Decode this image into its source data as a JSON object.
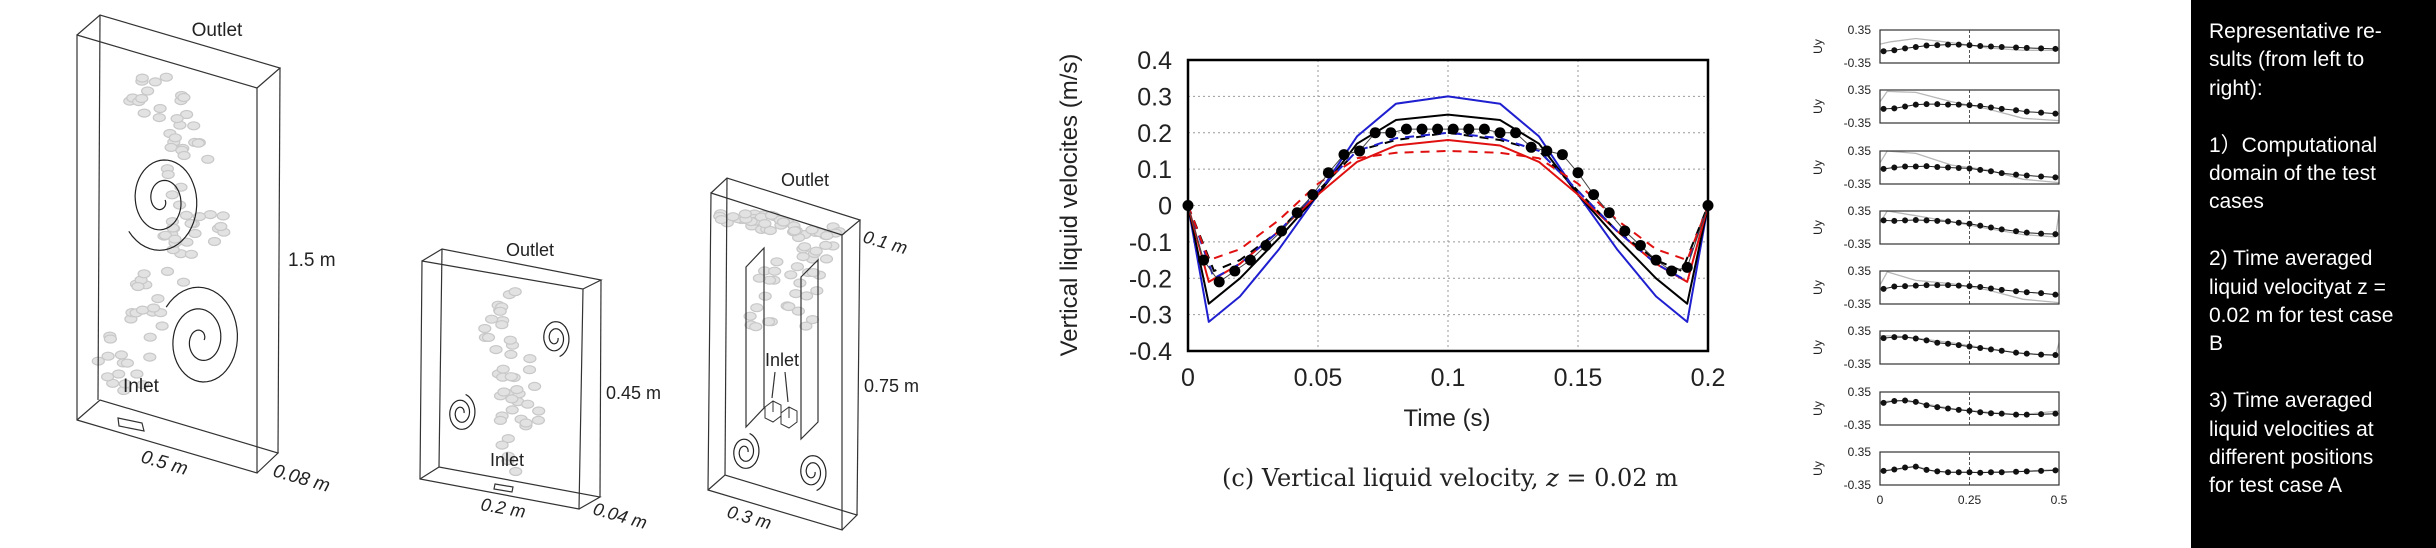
{
  "domains": [
    {
      "outlet": "Outlet",
      "inlet": "Inlet",
      "height": "1.5 m",
      "width": "0.5 m",
      "depth": "0.08 m"
    },
    {
      "outlet": "Outlet",
      "inlet": "Inlet",
      "height": "0.45 m",
      "width": "0.2 m",
      "depth": "0.04 m"
    },
    {
      "outlet": "Outlet",
      "inlet": "Inlet",
      "height": "0.75 m",
      "width": "0.3 m",
      "depth": "0.1 m"
    }
  ],
  "caption": {
    "prefix": "(c) Vertical liquid velocity, ",
    "var": "z",
    "suffix": " = 0.02 m"
  },
  "chart_data": [
    {
      "type": "line",
      "title": "",
      "xlabel": "Time (s)",
      "ylabel": "Vertical liquid velocites (m/s)",
      "xlim": [
        0,
        0.2
      ],
      "ylim": [
        -0.4,
        0.4
      ],
      "xticks": [
        "0",
        "0.05",
        "0.1",
        "0.15",
        "0.2"
      ],
      "xtick_values": [
        0,
        0.05,
        0.1,
        0.15,
        0.2
      ],
      "yticks": [
        "0.4",
        "0.3",
        "0.2",
        "0.1",
        "0",
        "-0.1",
        "-0.2",
        "-0.3",
        "-0.4"
      ],
      "ytick_values": [
        0.4,
        0.3,
        0.2,
        0.1,
        0,
        -0.1,
        -0.2,
        -0.3,
        -0.4
      ],
      "grid": true,
      "series": [
        {
          "name": "blue solid",
          "color": "#1f1fd0",
          "dash": false,
          "x": [
            0,
            0.008,
            0.02,
            0.035,
            0.05,
            0.065,
            0.08,
            0.1,
            0.12,
            0.135,
            0.15,
            0.165,
            0.18,
            0.192,
            0.2
          ],
          "y": [
            0,
            -0.32,
            -0.25,
            -0.12,
            0.03,
            0.19,
            0.28,
            0.3,
            0.28,
            0.19,
            0.03,
            -0.12,
            -0.25,
            -0.32,
            0
          ]
        },
        {
          "name": "black solid",
          "color": "#000000",
          "dash": false,
          "x": [
            0,
            0.008,
            0.02,
            0.035,
            0.05,
            0.065,
            0.08,
            0.1,
            0.12,
            0.135,
            0.15,
            0.165,
            0.18,
            0.192,
            0.2
          ],
          "y": [
            0,
            -0.27,
            -0.2,
            -0.09,
            0.03,
            0.17,
            0.235,
            0.25,
            0.235,
            0.17,
            0.03,
            -0.09,
            -0.2,
            -0.27,
            0
          ]
        },
        {
          "name": "red solid",
          "color": "#e01010",
          "dash": false,
          "x": [
            0,
            0.008,
            0.02,
            0.035,
            0.05,
            0.065,
            0.08,
            0.1,
            0.12,
            0.135,
            0.15,
            0.165,
            0.18,
            0.192,
            0.2
          ],
          "y": [
            0,
            -0.21,
            -0.16,
            -0.07,
            0.03,
            0.12,
            0.165,
            0.18,
            0.165,
            0.12,
            0.03,
            -0.07,
            -0.16,
            -0.21,
            0
          ]
        },
        {
          "name": "black dashed",
          "color": "#000000",
          "dash": true,
          "x": [
            0,
            0.01,
            0.02,
            0.035,
            0.05,
            0.065,
            0.08,
            0.1,
            0.12,
            0.135,
            0.15,
            0.165,
            0.18,
            0.19,
            0.2
          ],
          "y": [
            0,
            -0.18,
            -0.15,
            -0.07,
            0.04,
            0.15,
            0.18,
            0.2,
            0.18,
            0.15,
            0.04,
            -0.07,
            -0.15,
            -0.18,
            0
          ]
        },
        {
          "name": "blue dashed",
          "color": "#1f1fd0",
          "dash": true,
          "x": [
            0,
            0.01,
            0.02,
            0.035,
            0.05,
            0.065,
            0.08,
            0.1,
            0.12,
            0.135,
            0.15,
            0.165,
            0.18,
            0.19,
            0.2
          ],
          "y": [
            0,
            -0.2,
            -0.16,
            -0.07,
            0.04,
            0.15,
            0.185,
            0.2,
            0.185,
            0.15,
            0.04,
            -0.07,
            -0.16,
            -0.2,
            0
          ]
        },
        {
          "name": "red dashed",
          "color": "#e01010",
          "dash": true,
          "x": [
            0,
            0.008,
            0.02,
            0.035,
            0.05,
            0.065,
            0.08,
            0.1,
            0.12,
            0.135,
            0.15,
            0.165,
            0.18,
            0.192,
            0.2
          ],
          "y": [
            0,
            -0.15,
            -0.12,
            -0.04,
            0.06,
            0.13,
            0.145,
            0.15,
            0.145,
            0.13,
            0.06,
            -0.04,
            -0.12,
            -0.15,
            0
          ]
        },
        {
          "name": "experiment",
          "color": "#000000",
          "marker": "circle",
          "x": [
            0,
            0.006,
            0.012,
            0.018,
            0.024,
            0.03,
            0.036,
            0.042,
            0.048,
            0.054,
            0.06,
            0.066,
            0.072,
            0.078,
            0.084,
            0.09,
            0.096,
            0.102,
            0.108,
            0.114,
            0.12,
            0.126,
            0.132,
            0.138,
            0.144,
            0.15,
            0.156,
            0.162,
            0.168,
            0.174,
            0.18,
            0.186,
            0.192,
            0.2
          ],
          "y": [
            0,
            -0.15,
            -0.21,
            -0.18,
            -0.15,
            -0.11,
            -0.07,
            -0.02,
            0.03,
            0.09,
            0.14,
            0.15,
            0.2,
            0.2,
            0.21,
            0.21,
            0.21,
            0.21,
            0.21,
            0.21,
            0.2,
            0.2,
            0.16,
            0.15,
            0.14,
            0.09,
            0.03,
            -0.02,
            -0.07,
            -0.11,
            -0.15,
            -0.18,
            -0.17,
            0
          ]
        }
      ]
    },
    {
      "type": "line",
      "ylabel": "Uy",
      "xlim": [
        0,
        0.5
      ],
      "ylim": [
        -0.35,
        0.35
      ],
      "ytick_top": "0.35",
      "ytick_bottom": "-0.35",
      "xticks": [
        "0",
        "0.25",
        "0.5"
      ],
      "xtick_values": [
        0,
        0.25,
        0.5
      ],
      "reference_x": 0.25,
      "dot_x": [
        0.01,
        0.04,
        0.07,
        0.1,
        0.13,
        0.16,
        0.19,
        0.22,
        0.25,
        0.28,
        0.31,
        0.34,
        0.38,
        0.41,
        0.45,
        0.49
      ],
      "panels": [
        {
          "dots": [
            -0.1,
            -0.08,
            -0.04,
            -0.01,
            0.02,
            0.03,
            0.04,
            0.04,
            0.03,
            0.01,
            0,
            -0.01,
            -0.02,
            -0.03,
            -0.04,
            -0.05
          ],
          "model_x": [
            0,
            0.03,
            0.1,
            0.2,
            0.3,
            0.4,
            0.5
          ],
          "model_y": [
            0.05,
            0.1,
            0.17,
            0.08,
            -0.03,
            -0.08,
            -0.08
          ]
        },
        {
          "dots": [
            -0.05,
            -0.04,
            0.0,
            0.04,
            0.05,
            0.05,
            0.04,
            0.04,
            0.03,
            0.01,
            -0.02,
            -0.05,
            -0.08,
            -0.11,
            -0.13,
            -0.15
          ],
          "model_x": [
            0,
            0.02,
            0.1,
            0.2,
            0.3,
            0.4,
            0.5
          ],
          "model_y": [
            0.1,
            0.32,
            0.3,
            0.1,
            -0.05,
            -0.25,
            -0.3
          ]
        },
        {
          "dots": [
            -0.03,
            0,
            0.02,
            0.02,
            0.03,
            0.01,
            0,
            -0.01,
            -0.02,
            -0.05,
            -0.08,
            -0.12,
            -0.15,
            -0.17,
            -0.19,
            -0.21
          ],
          "model_x": [
            0,
            0.02,
            0.1,
            0.2,
            0.3,
            0.4,
            0.5
          ],
          "model_y": [
            0.1,
            0.35,
            0.3,
            0.05,
            -0.05,
            -0.25,
            -0.32
          ]
        },
        {
          "dots": [
            0.15,
            0.14,
            0.15,
            0.16,
            0.15,
            0.14,
            0.13,
            0.1,
            0.08,
            0.04,
            0.0,
            -0.04,
            -0.08,
            -0.11,
            -0.13,
            -0.14
          ],
          "model_x": [
            0,
            0.02,
            0.1,
            0.2,
            0.3,
            0.4,
            0.49,
            0.5
          ],
          "model_y": [
            0.1,
            0.35,
            0.25,
            0.12,
            -0.02,
            -0.15,
            -0.2,
            0.3
          ]
        },
        {
          "dots": [
            -0.03,
            0.02,
            0.03,
            0.04,
            0.05,
            0.05,
            0.05,
            0.04,
            0.03,
            0.01,
            -0.02,
            -0.05,
            -0.08,
            -0.1,
            -0.12,
            -0.15
          ],
          "model_x": [
            0,
            0.02,
            0.1,
            0.2,
            0.3,
            0.4,
            0.5
          ],
          "model_y": [
            0.05,
            0.33,
            0.15,
            0.08,
            -0.05,
            -0.25,
            -0.32
          ]
        },
        {
          "dots": [
            0.2,
            0.22,
            0.22,
            0.19,
            0.15,
            0.1,
            0.08,
            0.05,
            0.02,
            -0.01,
            -0.04,
            -0.07,
            -0.11,
            -0.13,
            -0.15,
            -0.16
          ],
          "model_x": [
            0,
            0.05,
            0.1,
            0.2,
            0.3,
            0.4,
            0.49,
            0.5
          ],
          "model_y": [
            0.25,
            0.24,
            0.2,
            0.1,
            -0.02,
            -0.13,
            -0.17,
            0.1
          ]
        },
        {
          "dots": [
            0.12,
            0.16,
            0.17,
            0.14,
            0.07,
            0.03,
            0.0,
            -0.03,
            -0.05,
            -0.08,
            -0.1,
            -0.11,
            -0.13,
            -0.13,
            -0.12,
            -0.11
          ],
          "model_x": [
            0,
            0.05,
            0.1,
            0.2,
            0.3,
            0.4,
            0.5
          ],
          "model_y": [
            0.14,
            0.17,
            0.13,
            0.0,
            -0.08,
            -0.13,
            -0.05
          ]
        },
        {
          "dots": [
            -0.05,
            -0.02,
            0.02,
            0.04,
            -0.03,
            -0.06,
            -0.08,
            -0.08,
            -0.08,
            -0.09,
            -0.08,
            -0.08,
            -0.07,
            -0.06,
            -0.05,
            -0.04
          ],
          "model_x": [
            0,
            0.05,
            0.1,
            0.15,
            0.2,
            0.3,
            0.4,
            0.5
          ],
          "model_y": [
            -0.06,
            -0.02,
            0.05,
            -0.06,
            -0.08,
            -0.08,
            -0.06,
            -0.02
          ]
        }
      ]
    }
  ],
  "description": {
    "lines": [
      "Representative re-",
      "sults (from left to",
      "right):",
      "",
      "1）Computational",
      "domain of the test",
      "cases",
      "",
      "2) Time averaged",
      "liquid velocityat z =",
      "0.02 m for test case",
      "B",
      "",
      "3) Time averaged",
      "liquid velocities at",
      "different positions",
      "for test case A"
    ]
  }
}
